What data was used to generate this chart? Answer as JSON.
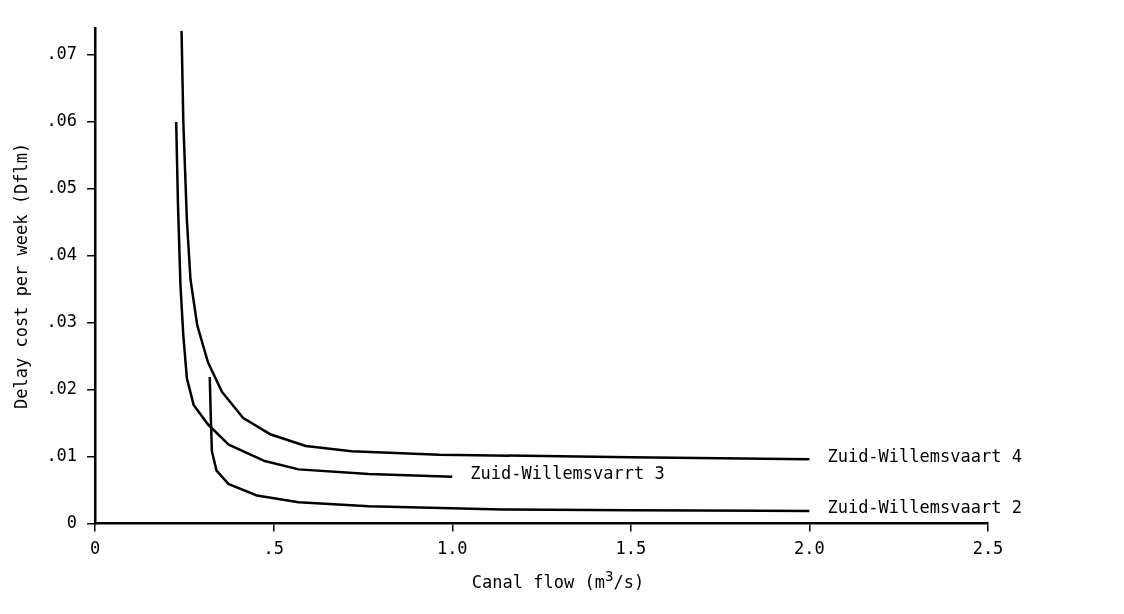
{
  "chart_data": {
    "type": "line",
    "xlabel": "Canal flow (m$^{3}$/s)",
    "ylabel": "Delay cost per week (Dflm)",
    "xlim": [
      0,
      2.5
    ],
    "ylim": [
      0,
      0.074
    ],
    "xticks": [
      0,
      {
        "value": 0.5,
        "label": ".5"
      },
      {
        "value": 1,
        "label": "1.0"
      },
      1.5,
      {
        "value": 2,
        "label": "2.0"
      },
      2.5
    ],
    "yticks": [
      0,
      {
        "value": 0.01,
        "label": ".01"
      },
      {
        "value": 0.02,
        "label": ".02"
      },
      {
        "value": 0.03,
        "label": ".03"
      },
      {
        "value": 0.04,
        "label": ".04"
      },
      {
        "value": 0.05,
        "label": ".05"
      },
      {
        "value": 0.06,
        "label": ".06"
      },
      {
        "value": 0.07,
        "label": ".07"
      }
    ],
    "grid": false,
    "legend": false,
    "marker": "none",
    "line_style": "solid",
    "series": [
      {
        "name": "Zuid-Willemsvaart 4",
        "color": "#000000",
        "x": [
          0.242,
          0.247,
          0.257,
          0.267,
          0.286,
          0.316,
          0.355,
          0.414,
          0.492,
          0.59,
          0.718,
          0.963,
          1.5,
          2.0
        ],
        "values": [
          0.0736,
          0.06,
          0.0453,
          0.0365,
          0.0296,
          0.0241,
          0.0197,
          0.0158,
          0.0133,
          0.0116,
          0.0108,
          0.0103,
          0.0099,
          0.0096
        ]
      },
      {
        "name": "Zuid-Willemsvarrt 3",
        "color": "#000000",
        "x": [
          0.227,
          0.232,
          0.239,
          0.247,
          0.257,
          0.276,
          0.316,
          0.374,
          0.472,
          0.57,
          0.766,
          1.0
        ],
        "values": [
          0.06,
          0.0478,
          0.0355,
          0.0281,
          0.0217,
          0.0177,
          0.0148,
          0.0118,
          0.0094,
          0.0081,
          0.0074,
          0.007
        ]
      },
      {
        "name": "Zuid-Willemsvaart 2",
        "color": "#000000",
        "x": [
          0.321,
          0.324,
          0.327,
          0.34,
          0.374,
          0.453,
          0.57,
          0.766,
          1.14,
          1.5,
          2.0
        ],
        "values": [
          0.0219,
          0.0158,
          0.0108,
          0.0079,
          0.0059,
          0.0042,
          0.0032,
          0.0026,
          0.0021,
          0.002,
          0.0019
        ]
      }
    ]
  }
}
